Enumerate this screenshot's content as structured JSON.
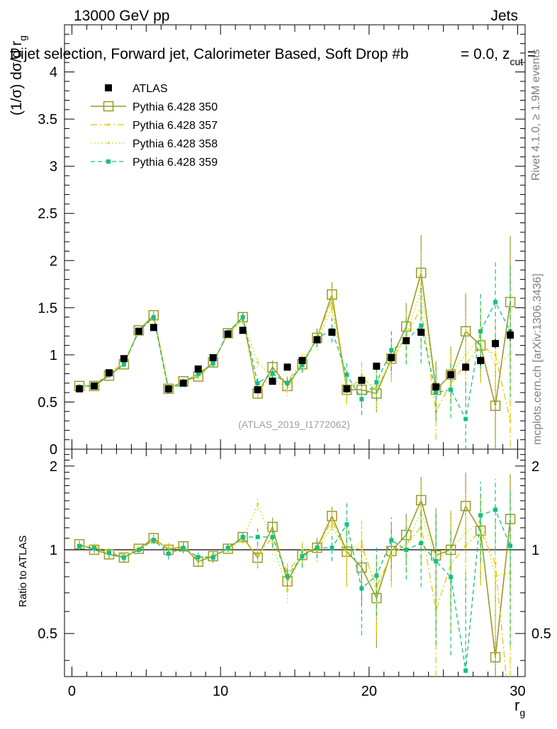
{
  "header": {
    "left": "13000 GeV pp",
    "right": "Jets",
    "title_prefix": "Dijet selection, Forward jet, Calorimeter Based, Soft Drop #b",
    "title_suffix": "= 0.0, z",
    "title_sub": "cut",
    "title_tail": " ="
  },
  "side_labels": {
    "rivet": "Rivet 4.1.0, ≥ 1.9M events",
    "mcplots": "mcplots.cern.ch [arXiv:1306.3436]"
  },
  "analysis_ref": "(ATLAS_2019_I1772062)",
  "axes": {
    "ylabel_main": "(1/σ) dσ/d r",
    "ylabel_main_sub": "g",
    "ylabel_ratio": "Ratio to ATLAS",
    "xlabel": "r",
    "xlabel_sub": "g",
    "main_yticks": [
      "0",
      "0.5",
      "1",
      "1.5",
      "2",
      "2.5",
      "3",
      "3.5",
      "4"
    ],
    "ratio_yticks": [
      "0.5",
      "1",
      "2"
    ],
    "xticks": [
      "0",
      "10",
      "20",
      "30"
    ]
  },
  "legend": [
    {
      "label": "ATLAS",
      "series": "atlas"
    },
    {
      "label": "Pythia 6.428 350",
      "series": "p350"
    },
    {
      "label": "Pythia 6.428 357",
      "series": "p357"
    },
    {
      "label": "Pythia 6.428 358",
      "series": "p358"
    },
    {
      "label": "Pythia 6.428 359",
      "series": "p359"
    }
  ],
  "chart_data": {
    "type": "scatter",
    "title": "Dijet selection, Forward jet, Calorimeter Based, Soft Drop #b = 0.0, z cut =",
    "xlabel": "r_g",
    "ylabel": "(1/σ) dσ/d r_g",
    "xlim": [
      -0.5,
      30.5
    ],
    "ylim": [
      0,
      4.5
    ],
    "ratio_ylim": [
      0.35,
      2.3
    ],
    "x": [
      0.5,
      1.5,
      2.5,
      3.5,
      4.5,
      5.5,
      6.5,
      7.5,
      8.5,
      9.5,
      10.5,
      11.5,
      12.5,
      13.5,
      14.5,
      15.5,
      16.5,
      17.5,
      18.5,
      19.5,
      20.5,
      21.5,
      22.5,
      23.5,
      24.5,
      25.5,
      26.5,
      27.5,
      28.5,
      29.5
    ],
    "series": [
      {
        "name": "ATLAS",
        "key": "atlas",
        "color": "#000000",
        "values": [
          0.64,
          0.67,
          0.81,
          0.96,
          1.25,
          1.29,
          0.64,
          0.7,
          0.85,
          0.97,
          1.22,
          1.26,
          0.63,
          0.72,
          0.87,
          0.94,
          1.16,
          1.24,
          0.64,
          0.73,
          0.88,
          0.97,
          1.15,
          1.24,
          0.66,
          0.79,
          0.87,
          0.94,
          1.12,
          1.21
        ],
        "errors": [
          0.02,
          0.02,
          0.02,
          0.02,
          0.02,
          0.02,
          0.02,
          0.02,
          0.02,
          0.02,
          0.02,
          0.02,
          0.02,
          0.02,
          0.02,
          0.02,
          0.02,
          0.03,
          0.03,
          0.03,
          0.03,
          0.03,
          0.03,
          0.04,
          0.04,
          0.04,
          0.04,
          0.05,
          0.05,
          0.06
        ]
      },
      {
        "name": "Pythia 6.428 350",
        "key": "p350",
        "color": "#9a9a2a",
        "values": [
          0.67,
          0.67,
          0.78,
          0.9,
          1.26,
          1.42,
          0.64,
          0.72,
          0.77,
          0.92,
          1.23,
          1.4,
          0.59,
          0.87,
          0.67,
          0.9,
          1.18,
          1.64,
          0.63,
          0.63,
          0.59,
          0.96,
          1.3,
          1.87,
          0.63,
          0.79,
          1.25,
          1.1,
          0.46,
          1.56
        ],
        "errors": [
          0.02,
          0.02,
          0.03,
          0.03,
          0.03,
          0.04,
          0.03,
          0.03,
          0.03,
          0.04,
          0.04,
          0.05,
          0.05,
          0.07,
          0.06,
          0.08,
          0.1,
          0.13,
          0.15,
          0.17,
          0.2,
          0.22,
          0.25,
          0.4,
          0.3,
          0.3,
          0.4,
          0.4,
          0.45,
          0.7
        ]
      },
      {
        "name": "Pythia 6.428 357",
        "key": "p357",
        "color": "#e6c800",
        "values": [
          0.66,
          0.69,
          0.8,
          0.92,
          1.26,
          1.4,
          0.65,
          0.71,
          0.8,
          0.92,
          1.23,
          1.38,
          0.6,
          0.8,
          0.72,
          0.92,
          1.18,
          1.58,
          0.62,
          0.75,
          0.65,
          0.93,
          1.2,
          1.5,
          0.4,
          0.7,
          0.9,
          1.1,
          1.0,
          0.3
        ],
        "errors": [
          0.02,
          0.02,
          0.03,
          0.03,
          0.03,
          0.04,
          0.03,
          0.03,
          0.03,
          0.04,
          0.04,
          0.05,
          0.05,
          0.07,
          0.06,
          0.08,
          0.1,
          0.13,
          0.15,
          0.17,
          0.2,
          0.22,
          0.25,
          0.4,
          0.3,
          0.3,
          0.4,
          0.4,
          0.45,
          0.7
        ]
      },
      {
        "name": "Pythia 6.428 358",
        "key": "p358",
        "color": "#d8e020",
        "values": [
          0.66,
          0.68,
          0.79,
          0.91,
          1.25,
          1.39,
          0.65,
          0.72,
          0.78,
          0.93,
          1.22,
          1.37,
          0.92,
          0.76,
          0.62,
          0.94,
          1.15,
          1.5,
          0.62,
          0.78,
          0.62,
          0.96,
          1.2,
          1.7,
          0.6,
          0.8,
          1.0,
          1.2,
          0.9,
          1.0
        ],
        "errors": [
          0.02,
          0.02,
          0.03,
          0.03,
          0.03,
          0.04,
          0.03,
          0.03,
          0.03,
          0.04,
          0.04,
          0.05,
          0.05,
          0.07,
          0.06,
          0.08,
          0.1,
          0.13,
          0.15,
          0.17,
          0.2,
          0.22,
          0.25,
          0.4,
          0.3,
          0.3,
          0.4,
          0.4,
          0.45,
          0.7
        ]
      },
      {
        "name": "Pythia 6.428 359",
        "key": "p359",
        "color": "#12c084",
        "values": [
          0.66,
          0.68,
          0.79,
          0.9,
          1.25,
          1.4,
          0.62,
          0.71,
          0.8,
          0.91,
          1.24,
          1.4,
          0.7,
          0.8,
          0.7,
          0.89,
          1.18,
          1.26,
          0.79,
          0.53,
          0.71,
          1.05,
          1.15,
          1.31,
          0.6,
          0.63,
          0.32,
          1.25,
          1.56,
          1.25
        ],
        "errors": [
          0.02,
          0.02,
          0.03,
          0.03,
          0.03,
          0.04,
          0.03,
          0.03,
          0.03,
          0.04,
          0.04,
          0.05,
          0.05,
          0.07,
          0.06,
          0.08,
          0.1,
          0.13,
          0.15,
          0.17,
          0.2,
          0.22,
          0.25,
          0.4,
          0.3,
          0.3,
          0.4,
          0.4,
          0.45,
          0.7
        ]
      }
    ]
  }
}
